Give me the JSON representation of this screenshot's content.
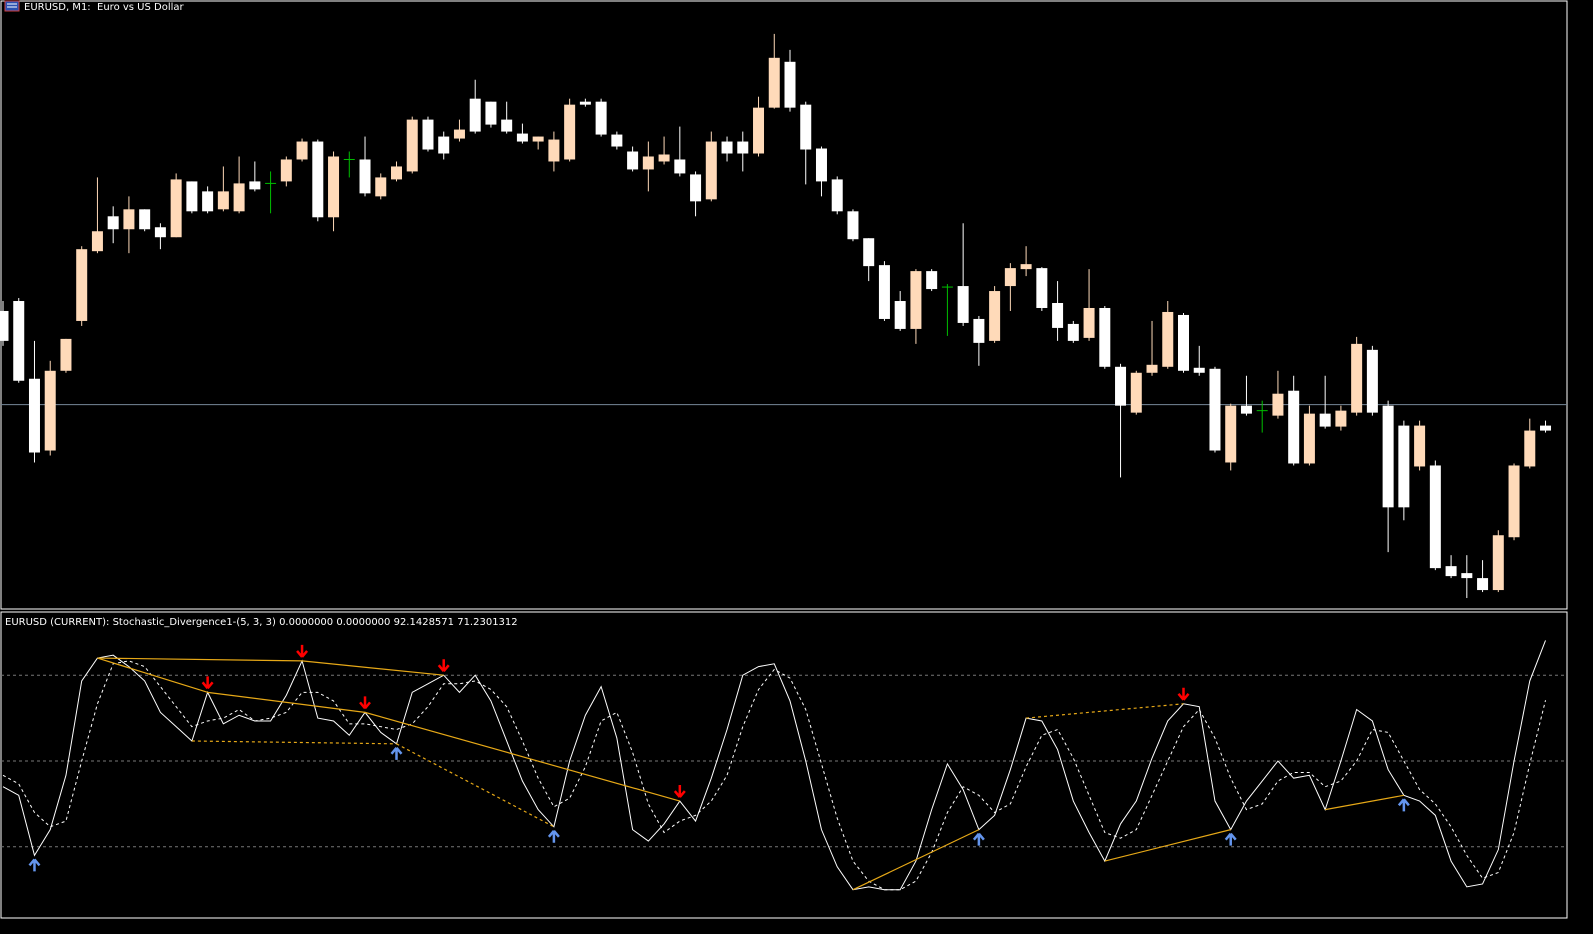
{
  "chart_data": [
    {
      "type": "candlestick",
      "title": "EURUSD, M1:  Euro vs US Dollar",
      "up_color": "#ffdab9",
      "down_color": "#ffffff",
      "doji_color": "#00c000",
      "price_line": 204,
      "price_line_color": "#778899",
      "ylim": [
        0,
        608
      ],
      "open": [
        298,
        308,
        230,
        158,
        238,
        288,
        358,
        393,
        380,
        400,
        382,
        372,
        428,
        418,
        400,
        398,
        428,
        426,
        428,
        450,
        468,
        392,
        450,
        450,
        413,
        430,
        438,
        490,
        473,
        471,
        511,
        508,
        490,
        476,
        468,
        448,
        450,
        508,
        508,
        475,
        458,
        440,
        448,
        450,
        435,
        410,
        468,
        468,
        456,
        502,
        548,
        505,
        461,
        430,
        398,
        371,
        344,
        308,
        280,
        338,
        322,
        323,
        290,
        268,
        323,
        340,
        341,
        306,
        285,
        271,
        301,
        242,
        196,
        236,
        242,
        294,
        241,
        240,
        146,
        203,
        198,
        193,
        218,
        145,
        195,
        182,
        196,
        259,
        203,
        183,
        142,
        143,
        42,
        35,
        30,
        18,
        71,
        142,
        183
      ],
      "high": [
        308,
        311,
        268,
        248,
        270,
        363,
        432,
        403,
        413,
        400,
        386,
        436,
        428,
        423,
        443,
        453,
        448,
        438,
        453,
        471,
        470,
        458,
        458,
        473,
        436,
        448,
        493,
        493,
        478,
        490,
        530,
        508,
        508,
        486,
        473,
        478,
        511,
        511,
        511,
        478,
        463,
        468,
        473,
        483,
        438,
        478,
        473,
        478,
        513,
        576,
        560,
        508,
        463,
        433,
        400,
        371,
        348,
        318,
        340,
        340,
        325,
        386,
        293,
        323,
        346,
        363,
        342,
        328,
        288,
        340,
        303,
        245,
        238,
        288,
        308,
        296,
        263,
        242,
        205,
        233,
        208,
        238,
        233,
        203,
        233,
        203,
        272,
        263,
        208,
        188,
        188,
        148,
        53,
        53,
        48,
        78,
        145,
        190,
        188
      ],
      "low": [
        263,
        226,
        146,
        153,
        236,
        283,
        356,
        366,
        356,
        378,
        360,
        372,
        396,
        396,
        398,
        396,
        418,
        396,
        423,
        448,
        388,
        378,
        432,
        413,
        410,
        428,
        436,
        458,
        450,
        468,
        476,
        482,
        476,
        466,
        460,
        438,
        448,
        503,
        473,
        460,
        438,
        418,
        445,
        433,
        393,
        408,
        448,
        438,
        453,
        501,
        498,
        425,
        413,
        395,
        368,
        328,
        288,
        278,
        265,
        318,
        273,
        283,
        243,
        266,
        298,
        333,
        298,
        268,
        266,
        268,
        240,
        131,
        194,
        233,
        240,
        236,
        233,
        156,
        138,
        193,
        176,
        190,
        143,
        143,
        180,
        178,
        193,
        193,
        56,
        88,
        138,
        38,
        30,
        10,
        16,
        16,
        68,
        140,
        176
      ],
      "close": [
        268,
        228,
        156,
        238,
        270,
        360,
        378,
        380,
        400,
        380,
        372,
        430,
        398,
        398,
        418,
        426,
        420,
        426,
        450,
        468,
        392,
        453,
        450,
        416,
        432,
        443,
        490,
        460,
        456,
        480,
        478,
        485,
        478,
        468,
        473,
        470,
        505,
        505,
        475,
        463,
        440,
        453,
        455,
        436,
        408,
        468,
        456,
        456,
        502,
        552,
        502,
        460,
        428,
        398,
        370,
        343,
        290,
        280,
        338,
        320,
        322,
        286,
        266,
        318,
        341,
        345,
        301,
        281,
        268,
        301,
        242,
        203,
        236,
        244,
        297,
        238,
        236,
        158,
        203,
        195,
        198,
        215,
        145,
        195,
        182,
        198,
        265,
        196,
        101,
        101,
        183,
        40,
        32,
        30,
        18,
        73,
        143,
        178,
        178
      ]
    },
    {
      "type": "line",
      "title": "EURUSD (CURRENT): Stochastic_Divergence1-(5, 3, 3) 0.0000000 0.0000000 92.1428571 71.2301312",
      "ylim": [
        0,
        100
      ],
      "levels": [
        20,
        50,
        80
      ],
      "series": [
        {
          "color": "#ffffff",
          "style": "solid",
          "values": [
            41,
            38,
            17,
            26,
            45,
            78,
            86,
            87,
            83,
            78,
            67,
            62,
            57,
            74,
            63,
            66,
            64,
            64,
            73,
            85,
            65,
            64,
            59,
            67,
            60,
            56,
            74,
            77,
            80,
            74,
            80,
            71,
            57,
            43,
            33,
            27,
            50,
            66,
            76,
            58,
            26,
            22,
            28,
            36,
            29,
            44,
            61,
            80,
            83,
            84,
            71,
            50,
            26,
            13,
            5,
            6,
            5,
            5,
            15,
            33,
            49,
            40,
            26,
            31,
            47,
            65,
            64,
            54,
            36,
            25,
            15,
            28,
            36,
            51,
            64,
            70,
            69,
            36,
            26,
            36,
            43,
            50,
            44,
            45,
            33,
            50,
            68,
            64,
            47,
            38,
            36,
            31,
            15,
            6,
            7,
            19,
            50,
            78,
            92.1428571
          ]
        },
        {
          "color": "#ffffff",
          "style": "dashed",
          "values": [
            45,
            42,
            32,
            27,
            29,
            50,
            70,
            84,
            85,
            83,
            76,
            69,
            62,
            64,
            65,
            68,
            64,
            65,
            67,
            74,
            74,
            71,
            63,
            63,
            62,
            61,
            63,
            69,
            77,
            77,
            78,
            75,
            69,
            57,
            44,
            34,
            37,
            48,
            64,
            67,
            53,
            35,
            25,
            29,
            31,
            36,
            45,
            62,
            75,
            82,
            79,
            68,
            49,
            30,
            15,
            8,
            5,
            5,
            8,
            18,
            32,
            41,
            38,
            32,
            35,
            48,
            59,
            61,
            51,
            38,
            25,
            23,
            26,
            38,
            50,
            62,
            68,
            58,
            44,
            33,
            35,
            43,
            46,
            46,
            41,
            43,
            50,
            61,
            60,
            50,
            40,
            35,
            27,
            17,
            9,
            11,
            25,
            49,
            71.2301312
          ]
        }
      ],
      "down_arrows": [
        13,
        19,
        23,
        28,
        43,
        75
      ],
      "up_arrows": [
        2,
        25,
        35,
        62,
        78,
        89
      ],
      "arrow_down_color": "#ff0000",
      "arrow_up_color": "#6495ed",
      "divergence_color": "#e6a817",
      "solid_lines": [
        [
          6,
          19
        ],
        [
          19,
          28
        ],
        [
          6,
          13
        ],
        [
          13,
          23
        ],
        [
          23,
          43
        ],
        [
          54,
          62
        ],
        [
          70,
          78
        ],
        [
          84,
          89
        ]
      ],
      "dashed_lines": [
        [
          12,
          25
        ],
        [
          25,
          35
        ],
        [
          65,
          75
        ]
      ]
    }
  ]
}
